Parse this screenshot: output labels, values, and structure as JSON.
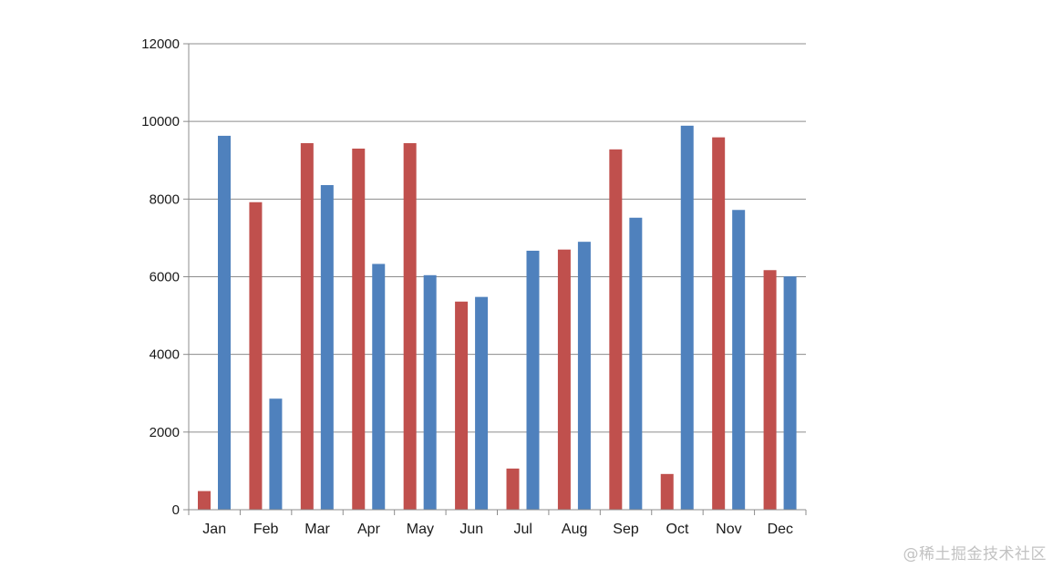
{
  "chart_data": {
    "type": "bar",
    "categories": [
      "Jan",
      "Feb",
      "Mar",
      "Apr",
      "May",
      "Jun",
      "Jul",
      "Aug",
      "Sep",
      "Oct",
      "Nov",
      "Dec"
    ],
    "series": [
      {
        "color": "#c0504d",
        "values": [
          480,
          7920,
          9440,
          9300,
          9440,
          5360,
          1060,
          6700,
          9280,
          920,
          9590,
          6170
        ]
      },
      {
        "color": "#4f81bd",
        "values": [
          9630,
          2860,
          8360,
          6330,
          6040,
          5480,
          6670,
          6900,
          7520,
          9890,
          7720,
          6010
        ]
      }
    ],
    "title": "",
    "xlabel": "",
    "ylabel": "",
    "ylim": [
      0,
      12000
    ],
    "yticks": [
      "0",
      "2000",
      "4000",
      "6000",
      "8000",
      "10000",
      "12000"
    ],
    "grid": true,
    "legend": "none"
  },
  "watermark": "@稀土掘金技术社区"
}
